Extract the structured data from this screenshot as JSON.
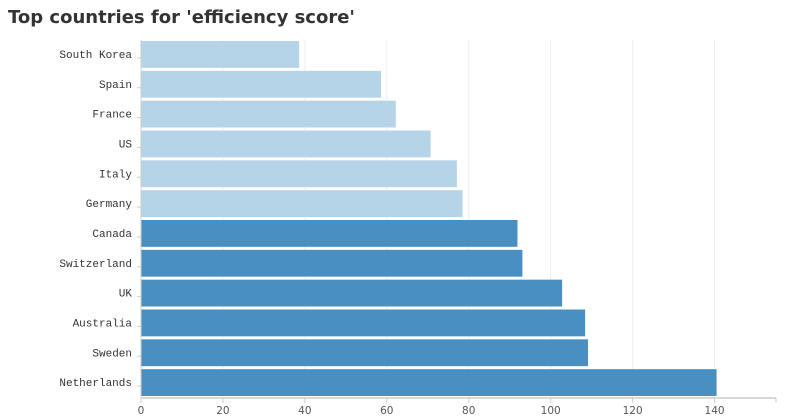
{
  "chart_data": {
    "type": "bar",
    "orientation": "horizontal",
    "title": "Top countries for 'efficiency score'",
    "xlabel": "",
    "ylabel": "",
    "xlim": [
      0,
      155
    ],
    "xticks": [
      0,
      20,
      40,
      60,
      80,
      100,
      120,
      140
    ],
    "grid": true,
    "categories": [
      "South Korea",
      "Spain",
      "France",
      "US",
      "Italy",
      "Germany",
      "Canada",
      "Switzerland",
      "UK",
      "Australia",
      "Sweden",
      "Netherlands"
    ],
    "values": [
      38.6,
      58.6,
      62.2,
      70.7,
      77.1,
      78.5,
      91.9,
      93.1,
      102.8,
      108.4,
      109.1,
      140.5
    ],
    "highlighted": [
      false,
      false,
      false,
      false,
      false,
      false,
      true,
      true,
      true,
      true,
      true,
      true
    ],
    "colors": {
      "normal": "#b5d4e8",
      "highlight": "#4a8fc2",
      "grid": "#eeeeee",
      "axis": "#cccccc"
    }
  }
}
